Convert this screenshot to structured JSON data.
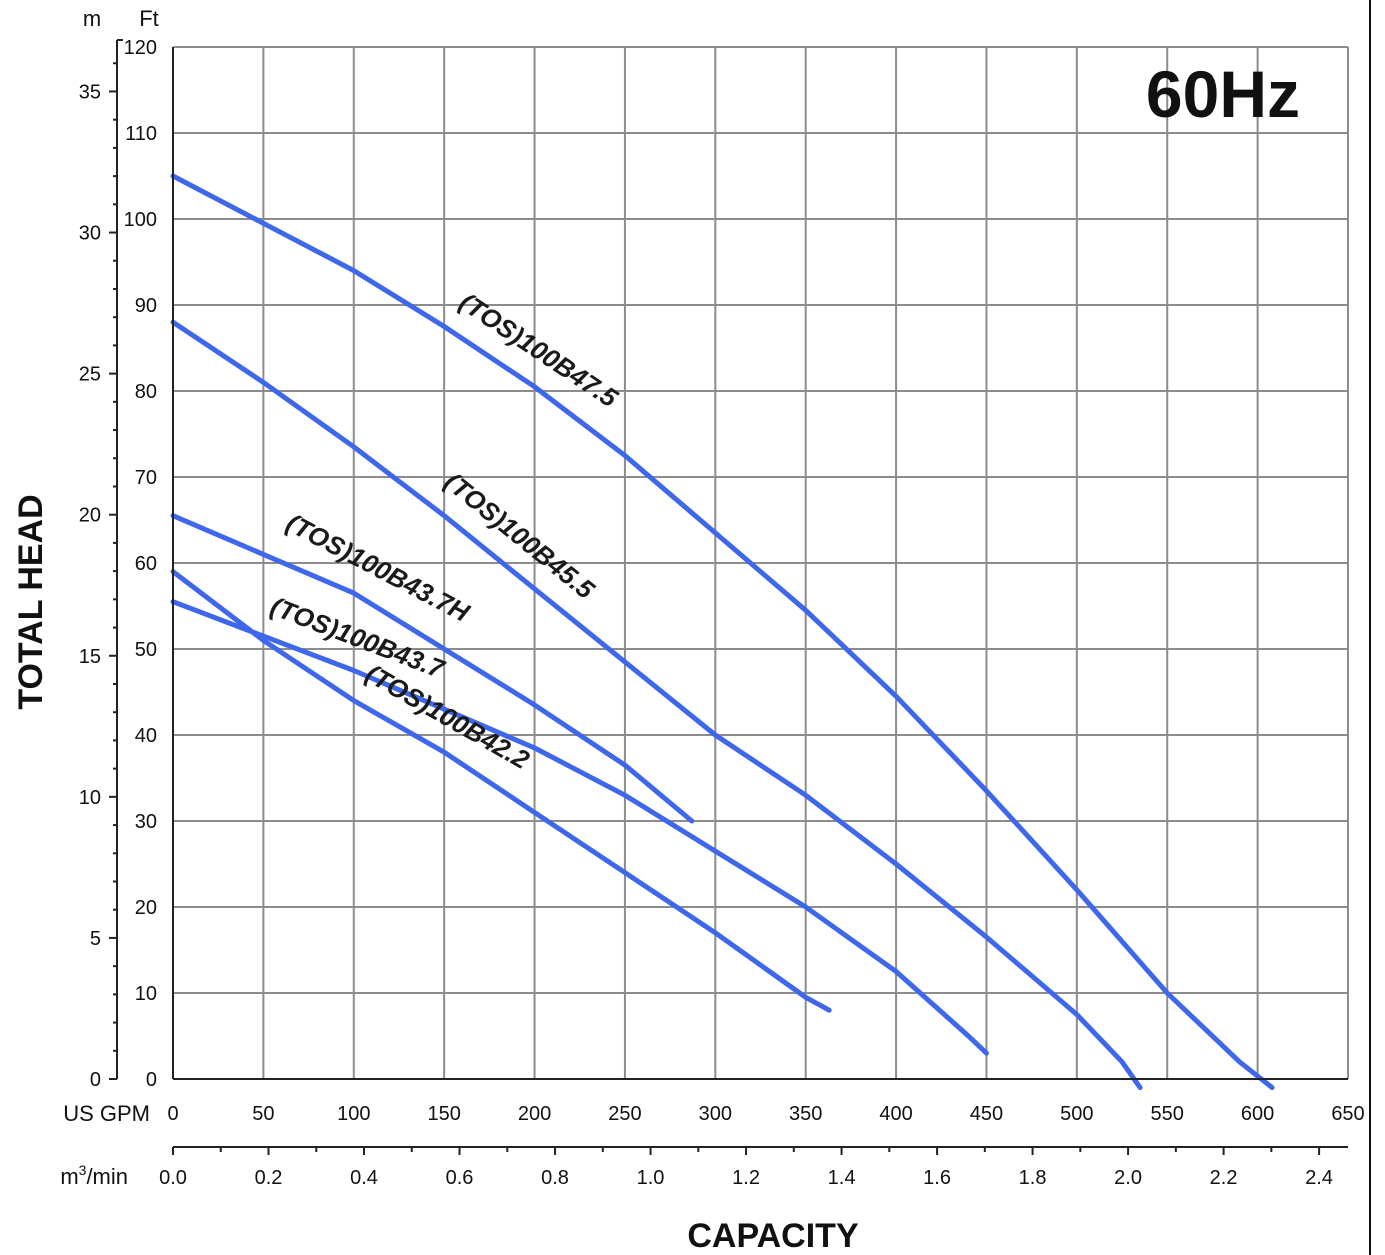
{
  "chart_data": {
    "type": "line",
    "title": "",
    "badge": "60Hz",
    "xlabel": "CAPACITY",
    "ylabel": "TOTAL HEAD",
    "x_primary": {
      "unit": "US GPM",
      "range": [
        0,
        650
      ],
      "ticks": [
        "0",
        "50",
        "100",
        "150",
        "200",
        "250",
        "300",
        "350",
        "400",
        "450",
        "500",
        "550",
        "600",
        "650"
      ]
    },
    "x_secondary": {
      "unit_base": "m",
      "unit_sup": "3",
      "unit_rest": "/min",
      "range": [
        0,
        2.4
      ],
      "ticks": [
        "0.0",
        "0.2",
        "0.4",
        "0.6",
        "0.8",
        "1.0",
        "1.2",
        "1.4",
        "1.6",
        "1.8",
        "2.0",
        "2.2",
        "2.4"
      ]
    },
    "y_primary": {
      "unit": "Ft",
      "range": [
        0,
        120
      ],
      "ticks": [
        "0",
        "10",
        "20",
        "30",
        "40",
        "50",
        "60",
        "70",
        "80",
        "90",
        "100",
        "110",
        "120"
      ]
    },
    "y_secondary": {
      "unit": "m",
      "ticks": [
        "0",
        "5",
        "10",
        "15",
        "20",
        "25",
        "30",
        "35"
      ]
    },
    "grid": true,
    "series": [
      {
        "name": "(TOS)100B47.5",
        "color": "#3e67ec",
        "points": [
          [
            0,
            105
          ],
          [
            50,
            99.5
          ],
          [
            100,
            94
          ],
          [
            150,
            87.5
          ],
          [
            200,
            80.5
          ],
          [
            250,
            72.5
          ],
          [
            300,
            63.5
          ],
          [
            350,
            54.5
          ],
          [
            400,
            44.5
          ],
          [
            450,
            33.5
          ],
          [
            500,
            22
          ],
          [
            550,
            10
          ],
          [
            590,
            2
          ],
          [
            608,
            -1
          ]
        ]
      },
      {
        "name": "(TOS)100B45.5",
        "color": "#3e67ec",
        "points": [
          [
            0,
            88
          ],
          [
            50,
            81
          ],
          [
            100,
            73.5
          ],
          [
            150,
            65.5
          ],
          [
            200,
            57
          ],
          [
            250,
            48.5
          ],
          [
            300,
            40
          ],
          [
            350,
            33
          ],
          [
            400,
            25
          ],
          [
            450,
            16.5
          ],
          [
            500,
            7.5
          ],
          [
            525,
            2
          ],
          [
            535,
            -1
          ]
        ]
      },
      {
        "name": "(TOS)100B43.7H",
        "color": "#3e67ec",
        "points": [
          [
            0,
            65.5
          ],
          [
            50,
            61
          ],
          [
            100,
            56.5
          ],
          [
            150,
            50
          ],
          [
            200,
            43.5
          ],
          [
            250,
            36.5
          ],
          [
            287,
            30
          ]
        ]
      },
      {
        "name": "(TOS)100B43.7",
        "color": "#3e67ec",
        "points": [
          [
            0,
            55.5
          ],
          [
            50,
            51.5
          ],
          [
            100,
            47.5
          ],
          [
            150,
            43
          ],
          [
            200,
            38.5
          ],
          [
            250,
            33
          ],
          [
            300,
            26.5
          ],
          [
            350,
            20
          ],
          [
            400,
            12.5
          ],
          [
            440,
            5
          ],
          [
            450,
            3
          ]
        ]
      },
      {
        "name": "(TOS)100B42.2",
        "color": "#3e67ec",
        "points": [
          [
            0,
            59
          ],
          [
            25,
            55
          ],
          [
            50,
            51
          ],
          [
            100,
            44
          ],
          [
            150,
            38
          ],
          [
            200,
            31
          ],
          [
            250,
            24
          ],
          [
            300,
            17
          ],
          [
            350,
            9.5
          ],
          [
            363,
            8
          ]
        ]
      }
    ]
  }
}
